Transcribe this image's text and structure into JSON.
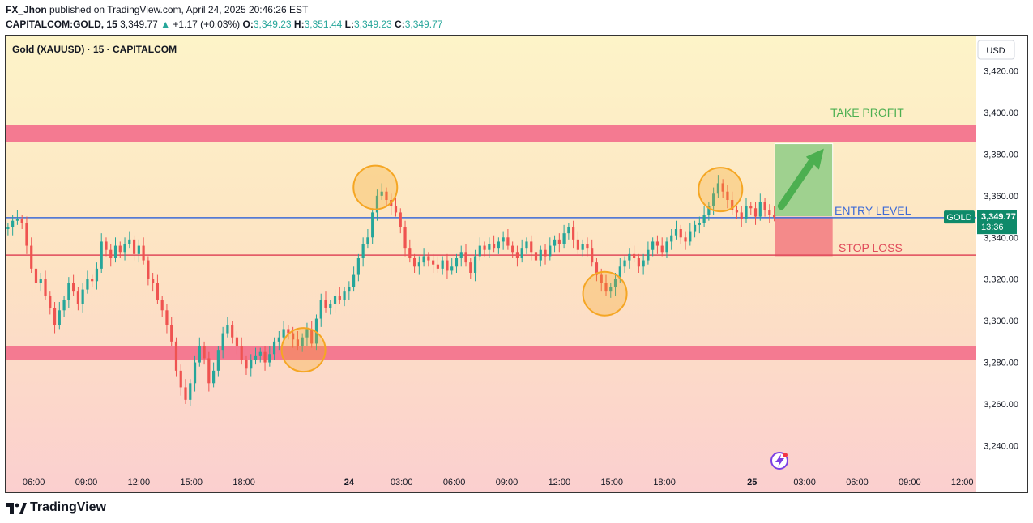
{
  "header": {
    "author": "FX_Jhon",
    "published_text": " published on TradingView.com, April 24, 2025 20:46:26 EST",
    "symbol_line": "CAPITALCOM:GOLD, 15",
    "last": "3,349.77",
    "change": "+1.17 (+0.03%)",
    "open_label": "O:",
    "open": "3,349.23",
    "high_label": "H:",
    "high": "3,351.44",
    "low_label": "L:",
    "low": "3,349.23",
    "close_label": "C:",
    "close": "3,349.77"
  },
  "footer": {
    "brand": "TradingView"
  },
  "colors": {
    "up": "#26a69a",
    "down": "#ef5350",
    "zone": "#f47a91",
    "entry": "#3d6bd6",
    "stop": "#e04a5a",
    "tp_box": "#9fd18f",
    "sl_box": "#f48a8a",
    "circle": "#f5a623",
    "label_bg": "#0e8a6a"
  },
  "chart_data": {
    "type": "candlestick",
    "title": "Gold (XAUUSD) · 15 · CAPITALCOM",
    "currency": "USD",
    "ylim": [
      3225,
      3435
    ],
    "y_ticks": [
      3420,
      3400,
      3380,
      3360,
      3340,
      3320,
      3300,
      3280,
      3260,
      3240
    ],
    "y_tick_labels": [
      "3,420.00",
      "3,400.00",
      "3,380.00",
      "3,360.00",
      "3,340.00",
      "3,320.00",
      "3,300.00",
      "3,280.00",
      "3,260.00",
      "3,240.00"
    ],
    "x_ticks": [
      {
        "label": "06:00",
        "h": 6
      },
      {
        "label": "09:00",
        "h": 9
      },
      {
        "label": "12:00",
        "h": 12
      },
      {
        "label": "15:00",
        "h": 15
      },
      {
        "label": "18:00",
        "h": 18
      },
      {
        "label": "24",
        "h": 24,
        "bold": true
      },
      {
        "label": "03:00",
        "h": 27
      },
      {
        "label": "06:00",
        "h": 30
      },
      {
        "label": "09:00",
        "h": 33
      },
      {
        "label": "12:00",
        "h": 36
      },
      {
        "label": "15:00",
        "h": 39
      },
      {
        "label": "18:00",
        "h": 42
      },
      {
        "label": "25",
        "h": 47,
        "bold": true
      },
      {
        "label": "03:00",
        "h": 50
      },
      {
        "label": "06:00",
        "h": 53
      },
      {
        "label": "09:00",
        "h": 56
      },
      {
        "label": "12:00",
        "h": 59
      }
    ],
    "x_range_hours": [
      4.4,
      59.8
    ],
    "closes": [
      3345,
      3348,
      3349,
      3347,
      3336,
      3325,
      3318,
      3320,
      3312,
      3306,
      3298,
      3305,
      3310,
      3318,
      3314,
      3308,
      3315,
      3320,
      3319,
      3325,
      3338,
      3334,
      3330,
      3336,
      3333,
      3337,
      3339,
      3332,
      3336,
      3329,
      3320,
      3318,
      3310,
      3305,
      3298,
      3290,
      3276,
      3268,
      3262,
      3270,
      3280,
      3288,
      3282,
      3270,
      3276,
      3286,
      3294,
      3298,
      3292,
      3288,
      3281,
      3277,
      3281,
      3283,
      3285,
      3280,
      3284,
      3290,
      3292,
      3296,
      3294,
      3291,
      3288,
      3292,
      3296,
      3289,
      3301,
      3310,
      3306,
      3308,
      3312,
      3310,
      3314,
      3316,
      3322,
      3330,
      3337,
      3340,
      3352,
      3360,
      3362,
      3358,
      3355,
      3352,
      3345,
      3335,
      3330,
      3326,
      3328,
      3331,
      3329,
      3327,
      3325,
      3329,
      3324,
      3326,
      3330,
      3333,
      3328,
      3323,
      3331,
      3336,
      3334,
      3337,
      3335,
      3338,
      3340,
      3336,
      3333,
      3330,
      3335,
      3338,
      3333,
      3329,
      3334,
      3331,
      3336,
      3339,
      3337,
      3342,
      3345,
      3339,
      3334,
      3337,
      3335,
      3328,
      3322,
      3318,
      3314,
      3316,
      3320,
      3326,
      3329,
      3332,
      3330,
      3326,
      3329,
      3334,
      3338,
      3336,
      3333,
      3338,
      3341,
      3344,
      3340,
      3338,
      3343,
      3346,
      3347,
      3351,
      3355,
      3361,
      3366,
      3362,
      3358,
      3353,
      3352,
      3349,
      3355,
      3354,
      3350,
      3357,
      3353,
      3351,
      3349.77
    ],
    "levels": {
      "take_profit_zone": [
        3386,
        3394
      ],
      "support_zone": [
        3281,
        3288
      ],
      "entry": 3349.5,
      "stop_loss": 3331.5
    },
    "position_box": {
      "x_hours": [
        48.3,
        51.6
      ],
      "tp": 3385,
      "entry": 3350,
      "sl": 3331
    },
    "circles": [
      {
        "x_h": 21.4,
        "y": 3286
      },
      {
        "x_h": 25.5,
        "y": 3364
      },
      {
        "x_h": 38.6,
        "y": 3313
      },
      {
        "x_h": 45.2,
        "y": 3363
      }
    ],
    "annotations": {
      "take_profit": "TAKE PROFIT",
      "entry_level": "ENTRY LEVEL",
      "stop_loss": "STOP LOSS",
      "price_tag_symbol": "GOLD",
      "price_tag_value": "3,349.77",
      "price_tag_timer": "13:36"
    }
  }
}
